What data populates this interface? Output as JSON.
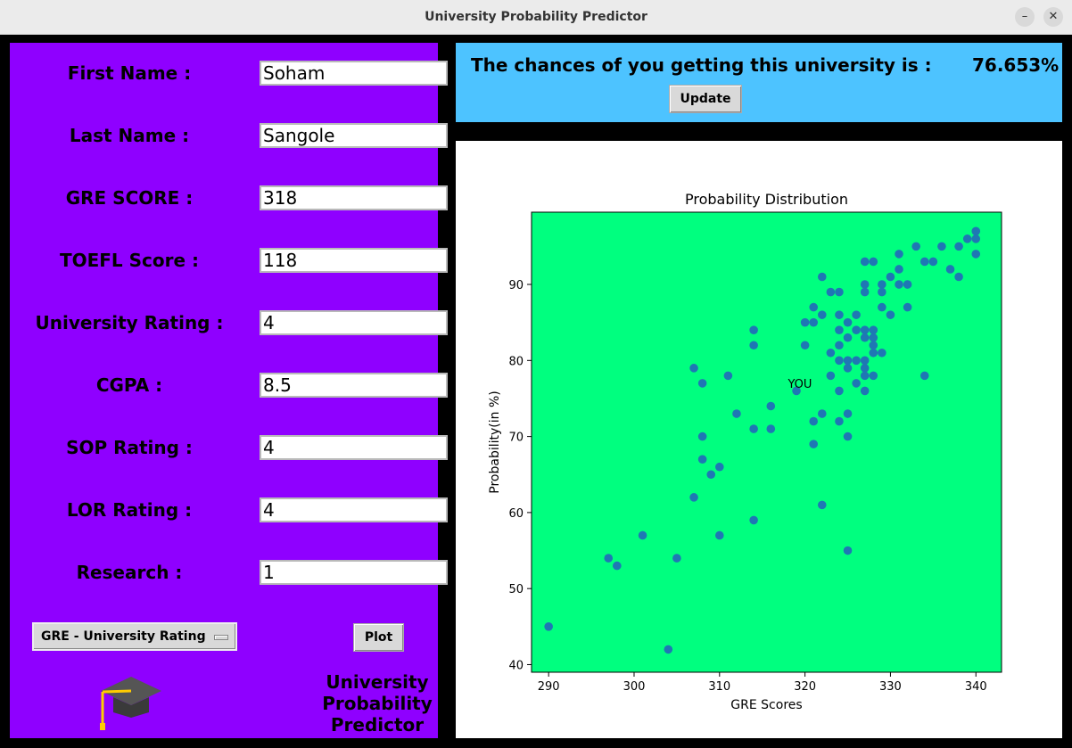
{
  "window": {
    "title": "University Probability Predictor",
    "min_glyph": "–",
    "close_glyph": "✕"
  },
  "form": {
    "fields": [
      {
        "label": "First Name :",
        "value": "Soham"
      },
      {
        "label": "Last Name :",
        "value": "Sangole"
      },
      {
        "label": "GRE SCORE :",
        "value": "318"
      },
      {
        "label": "TOEFL Score :",
        "value": "118"
      },
      {
        "label": "University Rating :",
        "value": "4"
      },
      {
        "label": "CGPA :",
        "value": "8.5"
      },
      {
        "label": "SOP Rating :",
        "value": "4"
      },
      {
        "label": "LOR Rating :",
        "value": "4"
      },
      {
        "label": "Research :",
        "value": "1"
      }
    ],
    "plot_select": "GRE - University Rating",
    "plot_button": "Plot",
    "app_name_lines": [
      "University",
      "Probability",
      "Predictor"
    ],
    "logo_icon": "graduation-cap-icon"
  },
  "result": {
    "text": "The chances of you getting this university is :",
    "value": "76.653%",
    "update_button": "Update"
  },
  "colors": {
    "left_panel": "#8f00ff",
    "top_panel": "#4dc3ff",
    "plot_bg": "#00ff7f",
    "points": "#1f77b4"
  },
  "chart_data": {
    "type": "scatter",
    "title": "Probability Distribution",
    "xlabel": "GRE Scores",
    "ylabel": "Probability(in %)",
    "xlim": [
      288,
      343
    ],
    "ylim": [
      39,
      99.5
    ],
    "xticks": [
      290,
      300,
      310,
      320,
      330,
      340
    ],
    "yticks": [
      40,
      50,
      60,
      70,
      80,
      90
    ],
    "annotation": {
      "text": "YOU",
      "x": 318,
      "y": 77
    },
    "points": [
      [
        290,
        45
      ],
      [
        297,
        54
      ],
      [
        298,
        53
      ],
      [
        301,
        57
      ],
      [
        304,
        42
      ],
      [
        305,
        54
      ],
      [
        307,
        79
      ],
      [
        307,
        62
      ],
      [
        308,
        77
      ],
      [
        308,
        70
      ],
      [
        308,
        67
      ],
      [
        309,
        65
      ],
      [
        310,
        66
      ],
      [
        310,
        57
      ],
      [
        311,
        78
      ],
      [
        312,
        73
      ],
      [
        314,
        84
      ],
      [
        314,
        82
      ],
      [
        314,
        71
      ],
      [
        314,
        59
      ],
      [
        316,
        74
      ],
      [
        316,
        71
      ],
      [
        319,
        76
      ],
      [
        320,
        85
      ],
      [
        320,
        82
      ],
      [
        321,
        87
      ],
      [
        321,
        85
      ],
      [
        321,
        72
      ],
      [
        321,
        69
      ],
      [
        322,
        91
      ],
      [
        322,
        86
      ],
      [
        322,
        73
      ],
      [
        322,
        61
      ],
      [
        323,
        89
      ],
      [
        323,
        81
      ],
      [
        323,
        78
      ],
      [
        324,
        89
      ],
      [
        324,
        86
      ],
      [
        324,
        84
      ],
      [
        324,
        82
      ],
      [
        324,
        80
      ],
      [
        324,
        76
      ],
      [
        324,
        72
      ],
      [
        325,
        85
      ],
      [
        325,
        83
      ],
      [
        325,
        80
      ],
      [
        325,
        79
      ],
      [
        325,
        73
      ],
      [
        325,
        70
      ],
      [
        325,
        55
      ],
      [
        326,
        86
      ],
      [
        326,
        84
      ],
      [
        326,
        80
      ],
      [
        326,
        77
      ],
      [
        327,
        93
      ],
      [
        327,
        90
      ],
      [
        327,
        89
      ],
      [
        327,
        84
      ],
      [
        327,
        83
      ],
      [
        327,
        80
      ],
      [
        327,
        79
      ],
      [
        327,
        78
      ],
      [
        327,
        76
      ],
      [
        328,
        93
      ],
      [
        328,
        84
      ],
      [
        328,
        83
      ],
      [
        328,
        82
      ],
      [
        328,
        81
      ],
      [
        328,
        78
      ],
      [
        329,
        90
      ],
      [
        329,
        89
      ],
      [
        329,
        87
      ],
      [
        329,
        81
      ],
      [
        330,
        91
      ],
      [
        330,
        86
      ],
      [
        331,
        94
      ],
      [
        331,
        92
      ],
      [
        331,
        90
      ],
      [
        332,
        90
      ],
      [
        332,
        87
      ],
      [
        333,
        95
      ],
      [
        334,
        93
      ],
      [
        334,
        78
      ],
      [
        335,
        93
      ],
      [
        336,
        95
      ],
      [
        337,
        92
      ],
      [
        338,
        95
      ],
      [
        338,
        91
      ],
      [
        339,
        96
      ],
      [
        340,
        97
      ],
      [
        340,
        96
      ],
      [
        340,
        94
      ]
    ]
  }
}
